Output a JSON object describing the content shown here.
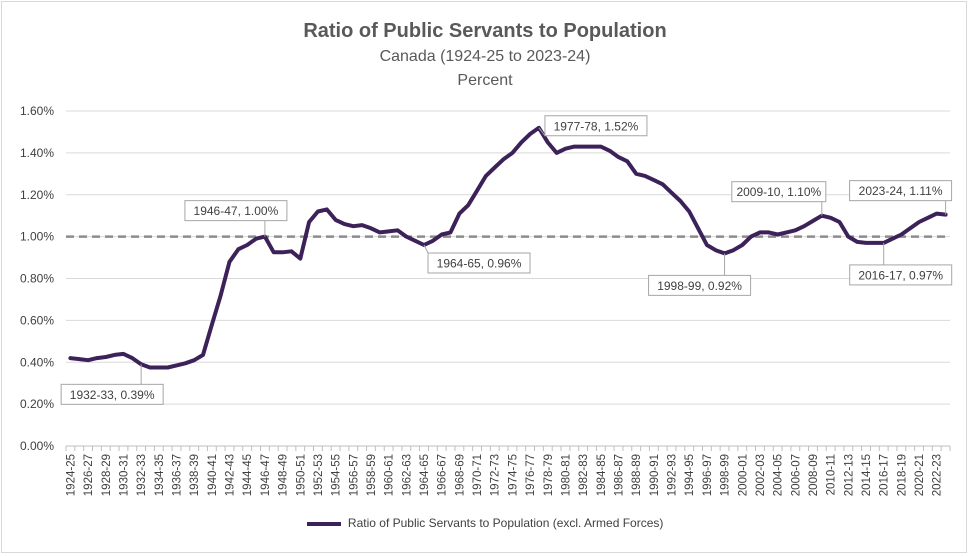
{
  "chart_data": {
    "type": "line",
    "title": "Ratio of Public Servants to Population",
    "subtitle": "Canada (1924-25 to 2023-24)",
    "subtitle2": "Percent",
    "ylim": [
      0,
      1.6
    ],
    "yticks": [
      "0.00%",
      "0.20%",
      "0.40%",
      "0.60%",
      "0.80%",
      "1.00%",
      "1.20%",
      "1.40%",
      "1.60%"
    ],
    "reference_line": 1.0,
    "colors": {
      "series": "#3c2259",
      "reference": "#8c8c8c",
      "grid": "#d9d9d9"
    },
    "x_tick_labels": [
      "1924-25",
      "1926-27",
      "1928-29",
      "1930-31",
      "1932-33",
      "1934-35",
      "1936-37",
      "1938-39",
      "1940-41",
      "1942-43",
      "1944-45",
      "1946-47",
      "1948-49",
      "1950-51",
      "1952-53",
      "1954-55",
      "1956-57",
      "1958-59",
      "1960-61",
      "1962-63",
      "1964-65",
      "1966-67",
      "1968-69",
      "1970-71",
      "1972-73",
      "1974-75",
      "1976-77",
      "1978-79",
      "1980-81",
      "1982-83",
      "1984-85",
      "1986-87",
      "1988-89",
      "1990-91",
      "1992-93",
      "1994-95",
      "1996-97",
      "1998-99",
      "2000-01",
      "2002-03",
      "2004-05",
      "2006-07",
      "2008-09",
      "2010-11",
      "2012-13",
      "2014-15",
      "2016-17",
      "2018-19",
      "2020-21",
      "2022-23"
    ],
    "series": [
      {
        "name": "Ratio of Public Servants to Population (excl. Armed Forces)",
        "x_start_year": 1924,
        "values": [
          0.42,
          0.415,
          0.41,
          0.42,
          0.425,
          0.435,
          0.44,
          0.42,
          0.39,
          0.375,
          0.375,
          0.375,
          0.385,
          0.395,
          0.41,
          0.435,
          0.58,
          0.72,
          0.88,
          0.94,
          0.96,
          0.99,
          1.0,
          0.925,
          0.925,
          0.93,
          0.895,
          1.07,
          1.12,
          1.13,
          1.08,
          1.06,
          1.05,
          1.055,
          1.04,
          1.02,
          1.025,
          1.03,
          1.0,
          0.98,
          0.96,
          0.98,
          1.01,
          1.02,
          1.11,
          1.15,
          1.22,
          1.29,
          1.33,
          1.37,
          1.4,
          1.45,
          1.49,
          1.52,
          1.45,
          1.4,
          1.42,
          1.43,
          1.43,
          1.43,
          1.43,
          1.41,
          1.38,
          1.36,
          1.3,
          1.29,
          1.27,
          1.25,
          1.21,
          1.17,
          1.12,
          1.04,
          0.96,
          0.935,
          0.92,
          0.935,
          0.96,
          1.0,
          1.02,
          1.02,
          1.01,
          1.02,
          1.03,
          1.05,
          1.075,
          1.1,
          1.09,
          1.07,
          1.0,
          0.975,
          0.97,
          0.97,
          0.97,
          0.99,
          1.01,
          1.04,
          1.07,
          1.09,
          1.11,
          1.105
        ]
      }
    ],
    "annotations": [
      {
        "text": "1932-33, 0.39%",
        "index": 8
      },
      {
        "text": "1946-47, 1.00%",
        "index": 22
      },
      {
        "text": "1964-65, 0.96%",
        "index": 40
      },
      {
        "text": "1977-78, 1.52%",
        "index": 53
      },
      {
        "text": "1998-99, 0.92%",
        "index": 74
      },
      {
        "text": "2009-10, 1.10%",
        "index": 85
      },
      {
        "text": "2016-17, 0.97%",
        "index": 92
      },
      {
        "text": "2023-24, 1.11%",
        "index": 99
      }
    ],
    "legend": "Ratio of Public Servants to Population (excl. Armed Forces)",
    "legend_position": "bottom"
  }
}
